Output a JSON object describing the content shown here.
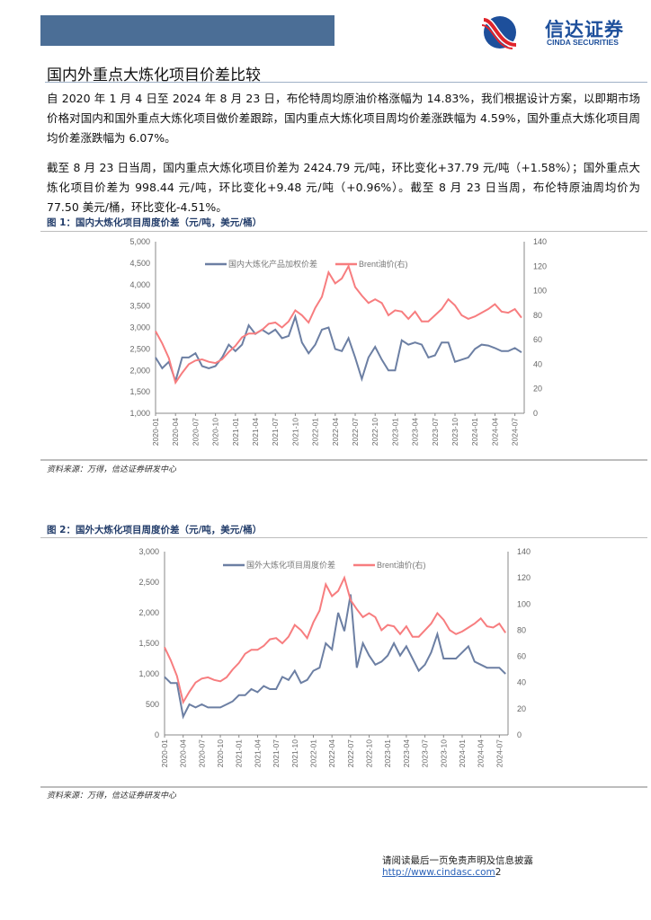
{
  "header": {
    "logo_cn": "信达证券",
    "logo_en": "CINDA SECURITIES"
  },
  "section_title": "国内外重点大炼化项目价差比较",
  "paragraphs": [
    "自 2020 年 1 月 4 日至 2024 年 8 月 23 日，布伦特周均原油价格涨幅为 14.83%，我们根据设计方案，以即期市场价格对国内和国外重点大炼化项目做价差跟踪，国内重点大炼化项目周均价差涨跌幅为 4.59%，国外重点大炼化项目周均价差涨跌幅为 6.07%。",
    "截至 8 月 23 日当周，国内重点大炼化项目价差为 2424.79 元/吨，环比变化+37.79 元/吨（+1.58%）；国外重点大炼化项目价差为 998.44 元/吨，环比变化+9.48 元/吨（+0.96%）。截至 8 月 23 日当周，布伦特原油周均价为 77.50 美元/桶，环比变化-4.51%。"
  ],
  "figures": [
    {
      "caption": "图 1：国内大炼化项目周度价差（元/吨，美元/桶）",
      "source": "资料来源：万得，信达证券研发中心"
    },
    {
      "caption": "图 2：国外大炼化项目周度价差（元/吨，美元/桶）",
      "source": "资料来源：万得，信达证券研发中心"
    }
  ],
  "footer": {
    "text": "请阅读最后一页免责声明及信息披露 ",
    "link": "http://www.cindasc.com",
    "page": "2"
  },
  "chart_data": [
    {
      "type": "line",
      "legend_placement": "top-center",
      "grid": false,
      "x_ticks": [
        "2020-01",
        "2020-04",
        "2020-07",
        "2020-10",
        "2021-01",
        "2021-04",
        "2021-07",
        "2021-10",
        "2022-01",
        "2022-04",
        "2022-07",
        "2022-10",
        "2023-01",
        "2023-04",
        "2023-07",
        "2023-10",
        "2024-01",
        "2024-04",
        "2024-07"
      ],
      "ylim": [
        1000,
        5000
      ],
      "yticks": [
        "1,000",
        "1,500",
        "2,000",
        "2,500",
        "3,000",
        "3,500",
        "4,000",
        "4,500",
        "5,000"
      ],
      "y2lim": [
        0,
        140
      ],
      "y2ticks": [
        "0",
        "20",
        "40",
        "60",
        "80",
        "100",
        "120",
        "140"
      ],
      "x_start": "2020-01",
      "x_step": "month",
      "series": [
        {
          "name": "国内大炼化产品加权价差",
          "axis": "left",
          "color": "#6c7fa3",
          "values": [
            2300,
            2050,
            2200,
            1750,
            2300,
            2300,
            2400,
            2100,
            2050,
            2100,
            2300,
            2600,
            2450,
            2600,
            3050,
            2850,
            2950,
            2850,
            2950,
            2750,
            2800,
            3250,
            2650,
            2400,
            2600,
            2950,
            3000,
            2500,
            2450,
            2750,
            2300,
            1800,
            2300,
            2550,
            2250,
            2000,
            2000,
            2700,
            2600,
            2650,
            2600,
            2300,
            2350,
            2650,
            2650,
            2200,
            2250,
            2300,
            2500,
            2600,
            2580,
            2520,
            2450,
            2450,
            2520,
            2420
          ]
        },
        {
          "name": "Brent油价(右)",
          "axis": "right",
          "color": "#f77d7f",
          "values": [
            67,
            57,
            45,
            25,
            33,
            40,
            43,
            44,
            42,
            41,
            44,
            50,
            55,
            62,
            65,
            65,
            68,
            73,
            74,
            70,
            75,
            84,
            80,
            74,
            86,
            95,
            115,
            106,
            110,
            120,
            103,
            96,
            90,
            93,
            90,
            80,
            84,
            83,
            77,
            83,
            75,
            75,
            80,
            85,
            93,
            88,
            80,
            77,
            79,
            82,
            85,
            89,
            83,
            82,
            85,
            78
          ]
        }
      ]
    },
    {
      "type": "line",
      "legend_placement": "top-center",
      "grid": false,
      "x_ticks": [
        "2020-01",
        "2020-04",
        "2020-07",
        "2020-10",
        "2021-01",
        "2021-04",
        "2021-07",
        "2021-10",
        "2022-01",
        "2022-04",
        "2022-07",
        "2022-10",
        "2023-01",
        "2023-04",
        "2023-07",
        "2023-10",
        "2024-01",
        "2024-04",
        "2024-07"
      ],
      "ylim": [
        0,
        3000
      ],
      "yticks": [
        "0",
        "500",
        "1,000",
        "1,500",
        "2,000",
        "2,500",
        "3,000"
      ],
      "y2lim": [
        0,
        140
      ],
      "y2ticks": [
        "0",
        "20",
        "40",
        "60",
        "80",
        "100",
        "120",
        "140"
      ],
      "x_start": "2020-01",
      "x_step": "month",
      "series": [
        {
          "name": "国外大炼化项目周度价差",
          "axis": "left",
          "color": "#6c7fa3",
          "values": [
            950,
            850,
            850,
            300,
            500,
            450,
            500,
            450,
            450,
            450,
            500,
            550,
            650,
            650,
            750,
            700,
            800,
            750,
            750,
            950,
            900,
            1050,
            850,
            900,
            1050,
            1100,
            1500,
            1400,
            2000,
            1700,
            2300,
            1100,
            1500,
            1300,
            1150,
            1200,
            1300,
            1500,
            1300,
            1450,
            1250,
            1050,
            1150,
            1350,
            1650,
            1250,
            1250,
            1250,
            1350,
            1450,
            1200,
            1150,
            1100,
            1100,
            1100,
            1000
          ]
        },
        {
          "name": "Brent油价(右)",
          "axis": "right",
          "color": "#f77d7f",
          "values": [
            67,
            57,
            45,
            25,
            33,
            40,
            43,
            44,
            42,
            41,
            44,
            50,
            55,
            62,
            65,
            65,
            68,
            73,
            74,
            70,
            75,
            84,
            80,
            74,
            86,
            95,
            115,
            106,
            110,
            120,
            103,
            96,
            90,
            93,
            90,
            80,
            84,
            83,
            77,
            83,
            75,
            75,
            80,
            85,
            93,
            88,
            80,
            77,
            79,
            82,
            85,
            89,
            83,
            82,
            85,
            78
          ]
        }
      ]
    }
  ]
}
